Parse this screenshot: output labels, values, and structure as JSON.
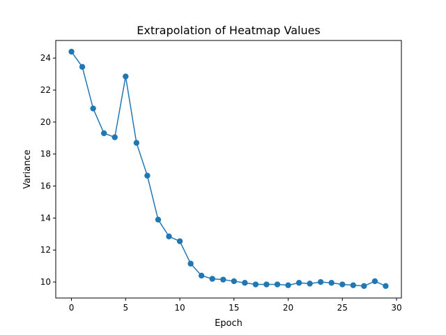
{
  "chart_data": {
    "type": "line",
    "title": "Extrapolation of Heatmap Values",
    "xlabel": "Epoch",
    "ylabel": "Variance",
    "xlim": [
      -1.45,
      30.45
    ],
    "ylim": [
      9.0,
      25.1
    ],
    "xticks": [
      0,
      5,
      10,
      15,
      20,
      25,
      30
    ],
    "yticks": [
      10,
      12,
      14,
      16,
      18,
      20,
      22,
      24
    ],
    "grid": false,
    "marker": "circle",
    "color": "#1f77b4",
    "series": [
      {
        "x": [
          0,
          1,
          2,
          3,
          4,
          5,
          6,
          7,
          8,
          9,
          10,
          11,
          12,
          13,
          14,
          15,
          16,
          17,
          18,
          19,
          20,
          21,
          22,
          23,
          24,
          25,
          26,
          27,
          28,
          29
        ],
        "values": [
          24.4,
          23.45,
          20.85,
          19.3,
          19.05,
          22.85,
          18.7,
          16.65,
          13.9,
          12.85,
          12.55,
          11.15,
          10.4,
          10.2,
          10.15,
          10.05,
          9.95,
          9.85,
          9.85,
          9.85,
          9.8,
          9.95,
          9.9,
          10.0,
          9.95,
          9.85,
          9.8,
          9.75,
          10.05,
          9.75
        ]
      }
    ]
  }
}
